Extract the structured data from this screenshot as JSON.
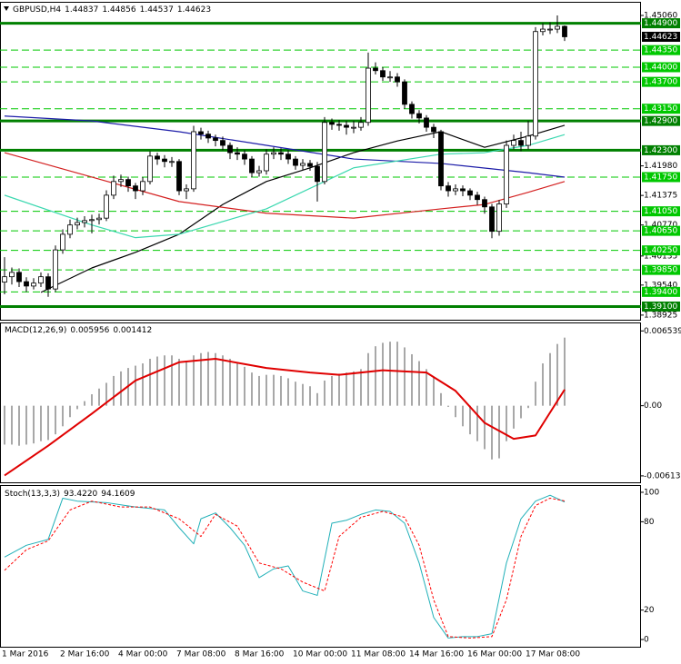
{
  "chart_data": [
    {
      "type": "candlestick",
      "title": "GBPUSD,H4",
      "categories": [
        "1 Mar 2016",
        null,
        null,
        null,
        null,
        null,
        null,
        null,
        "2 Mar 16:00",
        null,
        null,
        null,
        null,
        null,
        null,
        null,
        "4 Mar 00:00",
        null,
        null,
        null,
        null,
        null,
        null,
        null,
        "7 Mar 08:00",
        null,
        null,
        null,
        null,
        null,
        null,
        null,
        "8 Mar 16:00",
        null,
        null,
        null,
        null,
        null,
        null,
        null,
        "10 Mar 00:00",
        null,
        null,
        null,
        null,
        null,
        null,
        null,
        "11 Mar 08:00",
        null,
        null,
        null,
        null,
        null,
        null,
        null,
        "14 Mar 16:00",
        null,
        null,
        null,
        null,
        null,
        null,
        null,
        "16 Mar 00:00",
        null,
        null,
        null,
        null,
        null,
        null,
        null,
        "17 Mar 08:00",
        null,
        null,
        null,
        null,
        null
      ],
      "open": [
        1.396,
        1.3971,
        1.398,
        1.3961,
        1.3952,
        1.3958,
        1.3971,
        1.3946,
        1.4026,
        1.4058,
        1.4077,
        1.4082,
        1.4086,
        1.4088,
        1.4091,
        1.4138,
        1.4166,
        1.417,
        1.4157,
        1.4147,
        1.4166,
        1.4218,
        1.4212,
        1.4207,
        1.4207,
        1.4147,
        1.4151,
        1.4268,
        1.4263,
        1.4255,
        1.425,
        1.424,
        1.4225,
        1.4222,
        1.4212,
        1.4184,
        1.4188,
        1.4222,
        1.4225,
        1.4222,
        1.4212,
        1.4199,
        1.4203,
        1.4197,
        1.4166,
        1.4287,
        1.4283,
        1.4281,
        1.4277,
        1.4277,
        1.4287,
        1.4398,
        1.4393,
        1.438,
        1.438,
        1.437,
        1.4324,
        1.4305,
        1.4296,
        1.4277,
        1.4268,
        1.4157,
        1.4147,
        1.4151,
        1.4147,
        1.4138,
        1.4129,
        1.4114,
        1.4064,
        1.412,
        1.424,
        1.425,
        1.424,
        1.4259,
        1.4473,
        1.4478,
        1.4478,
        1.44837
      ],
      "high": [
        1.4011,
        1.399,
        1.3988,
        1.397,
        1.3968,
        1.398,
        1.3978,
        1.4035,
        1.4068,
        1.4088,
        1.4092,
        1.4095,
        1.4098,
        1.41,
        1.4148,
        1.4178,
        1.418,
        1.4176,
        1.4163,
        1.4175,
        1.4228,
        1.4225,
        1.422,
        1.4216,
        1.4212,
        1.416,
        1.428,
        1.4276,
        1.427,
        1.4262,
        1.4258,
        1.4246,
        1.4236,
        1.423,
        1.4218,
        1.4198,
        1.4232,
        1.4236,
        1.4234,
        1.423,
        1.4218,
        1.4212,
        1.421,
        1.4206,
        1.4298,
        1.4295,
        1.4292,
        1.429,
        1.429,
        1.4298,
        1.443,
        1.441,
        1.44,
        1.4392,
        1.4388,
        1.4375,
        1.433,
        1.4312,
        1.4302,
        1.4284,
        1.4272,
        1.4165,
        1.416,
        1.4158,
        1.4152,
        1.4145,
        1.4135,
        1.412,
        1.4128,
        1.425,
        1.4262,
        1.4268,
        1.429,
        1.4482,
        1.449,
        1.4492,
        1.4506,
        1.44856
      ],
      "low": [
        1.3935,
        1.3955,
        1.395,
        1.394,
        1.3945,
        1.395,
        1.393,
        1.394,
        1.4018,
        1.405,
        1.4068,
        1.4072,
        1.406,
        1.4078,
        1.4085,
        1.413,
        1.4155,
        1.4145,
        1.413,
        1.4138,
        1.416,
        1.42,
        1.4195,
        1.4196,
        1.4138,
        1.413,
        1.4145,
        1.4252,
        1.4245,
        1.4238,
        1.423,
        1.4212,
        1.421,
        1.42,
        1.4175,
        1.4176,
        1.418,
        1.4212,
        1.421,
        1.4202,
        1.419,
        1.419,
        1.4188,
        1.4125,
        1.416,
        1.4272,
        1.427,
        1.4262,
        1.4265,
        1.427,
        1.428,
        1.4385,
        1.4372,
        1.437,
        1.436,
        1.4315,
        1.4295,
        1.4285,
        1.4268,
        1.4255,
        1.4148,
        1.4135,
        1.4138,
        1.4136,
        1.4128,
        1.4118,
        1.41,
        1.405,
        1.4055,
        1.4112,
        1.4232,
        1.4228,
        1.4232,
        1.4252,
        1.4465,
        1.4468,
        1.447,
        1.44537
      ],
      "close": [
        1.3971,
        1.398,
        1.3961,
        1.3952,
        1.3958,
        1.3971,
        1.3946,
        1.4026,
        1.4058,
        1.4077,
        1.4082,
        1.4086,
        1.4088,
        1.4091,
        1.4138,
        1.4166,
        1.417,
        1.4157,
        1.4147,
        1.4166,
        1.4218,
        1.4212,
        1.4207,
        1.4207,
        1.4147,
        1.4151,
        1.4268,
        1.4263,
        1.4255,
        1.425,
        1.424,
        1.4225,
        1.4222,
        1.4212,
        1.4184,
        1.4188,
        1.4222,
        1.4225,
        1.4222,
        1.4212,
        1.4199,
        1.4203,
        1.4197,
        1.4166,
        1.4287,
        1.4283,
        1.4281,
        1.4277,
        1.4277,
        1.4287,
        1.4398,
        1.4393,
        1.438,
        1.438,
        1.437,
        1.4324,
        1.4305,
        1.4296,
        1.4277,
        1.4268,
        1.4157,
        1.4147,
        1.4151,
        1.4147,
        1.4138,
        1.4129,
        1.4114,
        1.4064,
        1.412,
        1.424,
        1.425,
        1.424,
        1.4259,
        1.4473,
        1.4478,
        1.4478,
        1.44837,
        1.44623
      ],
      "moving_averages": [
        {
          "color": "#000000",
          "x": [
            5,
            12,
            18,
            24,
            30,
            36,
            42,
            48,
            54,
            60,
            66,
            72,
            77
          ],
          "values": [
            1.3939,
            1.3989,
            1.4021,
            1.4058,
            1.4119,
            1.4166,
            1.4194,
            1.4225,
            1.4249,
            1.4268,
            1.4236,
            1.4259,
            1.4281
          ]
        },
        {
          "color": "#1c1ca8",
          "x": [
            0,
            12,
            24,
            36,
            48,
            60,
            72,
            77
          ],
          "values": [
            1.43,
            1.429,
            1.4268,
            1.424,
            1.4212,
            1.4203,
            1.4184,
            1.4175
          ]
        },
        {
          "color": "#d42020",
          "x": [
            0,
            12,
            24,
            36,
            48,
            60,
            66,
            72,
            77
          ],
          "values": [
            1.4225,
            1.4175,
            1.4125,
            1.4101,
            1.4091,
            1.411,
            1.4119,
            1.4144,
            1.4166
          ]
        },
        {
          "color": "#3cd8b0",
          "x": [
            0,
            12,
            18,
            24,
            36,
            48,
            60,
            66,
            72,
            77
          ],
          "values": [
            1.4138,
            1.4077,
            1.4051,
            1.4058,
            1.411,
            1.4194,
            1.4222,
            1.4225,
            1.424,
            1.4262
          ]
        }
      ],
      "levels": [
        {
          "value": 1.449,
          "label": "1.44900",
          "style": "solid"
        },
        {
          "value": 1.4435,
          "label": "1.44350",
          "style": "dashed"
        },
        {
          "value": 1.44,
          "label": "1.44000",
          "style": "dashed"
        },
        {
          "value": 1.437,
          "label": "1.43700",
          "style": "dashed"
        },
        {
          "value": 1.4315,
          "label": "1.43150",
          "style": "dashed"
        },
        {
          "value": 1.429,
          "label": "1.42900",
          "style": "solid"
        },
        {
          "value": 1.423,
          "label": "1.42300",
          "style": "solid"
        },
        {
          "value": 1.4175,
          "label": "1.41750",
          "style": "dashed"
        },
        {
          "value": 1.4105,
          "label": "1.41050",
          "style": "dashed"
        },
        {
          "value": 1.4065,
          "label": "1.40650",
          "style": "dashed"
        },
        {
          "value": 1.4025,
          "label": "1.40250",
          "style": "dashed"
        },
        {
          "value": 1.3985,
          "label": "1.39850",
          "style": "dashed"
        },
        {
          "value": 1.394,
          "label": "1.39400",
          "style": "dashed"
        },
        {
          "value": 1.391,
          "label": "1.39100",
          "style": "solid"
        }
      ],
      "level_color": "#00c800",
      "solid_level_color": "#008000",
      "ylim": [
        1.3883,
        1.4519
      ],
      "yticks": [
        {
          "value": 1.4506,
          "label": "1.45060"
        },
        {
          "value": 1.4198,
          "label": "1.41980"
        },
        {
          "value": 1.41375,
          "label": "1.41375"
        },
        {
          "value": 1.4077,
          "label": "1.40770"
        },
        {
          "value": 1.40135,
          "label": "1.40135"
        },
        {
          "value": 1.3954,
          "label": "1.39540"
        },
        {
          "value": 1.38925,
          "label": "1.38925"
        }
      ]
    },
    {
      "type": "macd",
      "title": "MACD(12,26,9)",
      "histogram": {
        "color": "#a8a8a8",
        "values": [
          -0.0034,
          -0.0034,
          -0.0035,
          -0.0034,
          -0.0033,
          -0.0031,
          -0.003,
          -0.0025,
          -0.0018,
          -0.001,
          -0.0003,
          0.0004,
          0.001,
          0.0015,
          0.002,
          0.0026,
          0.003,
          0.0033,
          0.0035,
          0.0037,
          0.0041,
          0.0043,
          0.0044,
          0.0044,
          0.0041,
          0.0039,
          0.0044,
          0.0046,
          0.0047,
          0.0046,
          0.0044,
          0.0041,
          0.0038,
          0.0034,
          0.0029,
          0.0026,
          0.0027,
          0.0027,
          0.0026,
          0.0024,
          0.0021,
          0.0019,
          0.0017,
          0.0011,
          0.0022,
          0.0026,
          0.0028,
          0.0029,
          0.003,
          0.0032,
          0.0046,
          0.0052,
          0.0055,
          0.0056,
          0.0056,
          0.0051,
          0.0045,
          0.0039,
          0.0032,
          0.0025,
          0.0011,
          -0.0001,
          -0.001,
          -0.0018,
          -0.0025,
          -0.0031,
          -0.0038,
          -0.0047,
          -0.0046,
          -0.0031,
          -0.002,
          -0.0011,
          -0.0002,
          0.0021,
          0.0037,
          0.0046,
          0.0054,
          0.005956
        ]
      },
      "signal": {
        "color": "#e00000",
        "x": [
          0,
          6,
          12,
          18,
          24,
          29,
          36,
          42,
          46,
          52,
          58,
          62,
          66,
          70,
          73,
          77
        ],
        "values": [
          -0.0061,
          -0.0035,
          -0.0007,
          0.0022,
          0.0038,
          0.0041,
          0.0033,
          0.0029,
          0.0027,
          0.0031,
          0.0029,
          0.0013,
          -0.0015,
          -0.0029,
          -0.0026,
          0.001412
        ]
      },
      "ylim": [
        -0.0067,
        0.0072
      ],
      "yticks": [
        0.006539,
        {
          "value": 0,
          "label": "0.00"
        },
        -0.006136
      ]
    },
    {
      "type": "stochastic",
      "title": "Stoch(13,3,3)",
      "series": [
        {
          "color": "#20b0b8",
          "line_style": "solid",
          "x": [
            0,
            3,
            6,
            8,
            10,
            14,
            18,
            22,
            24,
            26,
            27,
            29,
            31,
            33,
            35,
            37,
            39,
            41,
            43,
            45,
            47,
            49,
            51,
            53,
            55,
            57,
            59,
            61,
            63,
            65,
            67,
            69,
            71,
            73,
            75,
            77
          ],
          "values": [
            56,
            64,
            68,
            96,
            94,
            93,
            90,
            88,
            76,
            65,
            82,
            86,
            76,
            64,
            42,
            48,
            50,
            33,
            30,
            79,
            81,
            85,
            88,
            87,
            79,
            52,
            15,
            1,
            2,
            2,
            4,
            52,
            82,
            94,
            98,
            93.422
          ],
          "last_label": "93.4220"
        },
        {
          "color": "#ff0000",
          "line_style": "dashed",
          "x": [
            0,
            3,
            6,
            9,
            12,
            16,
            20,
            24,
            27,
            29,
            32,
            35,
            38,
            41,
            44,
            46,
            49,
            52,
            55,
            57,
            59,
            61,
            64,
            67,
            69,
            71,
            73,
            75,
            77
          ],
          "values": [
            47,
            61,
            67,
            88,
            94,
            90,
            90,
            82,
            70,
            85,
            77,
            52,
            48,
            39,
            33,
            70,
            83,
            87,
            83,
            64,
            27,
            2,
            1,
            2,
            27,
            70,
            91,
            96,
            94.1609
          ]
        }
      ],
      "ylim": [
        -4.9,
        104.3
      ],
      "yticks": [
        100,
        80,
        20,
        0
      ]
    }
  ]
}
